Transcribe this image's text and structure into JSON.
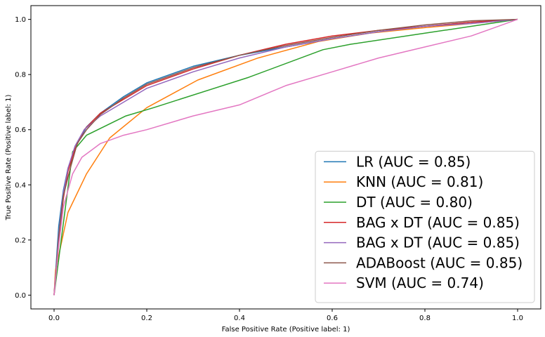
{
  "chart_data": {
    "type": "line",
    "xlabel": "False Positive Rate (Positive label: 1)",
    "ylabel": "True Positive Rate (Positive label: 1)",
    "xlim": [
      -0.05,
      1.05
    ],
    "ylim": [
      -0.05,
      1.05
    ],
    "xticks": [
      "0.0",
      "0.2",
      "0.4",
      "0.6",
      "0.8",
      "1.0"
    ],
    "yticks": [
      "0.0",
      "0.2",
      "0.4",
      "0.6",
      "0.8",
      "1.0"
    ],
    "grid": false,
    "legend_position": "lower-right",
    "series": [
      {
        "name": "LR (AUC = 0.85)",
        "color": "#1f77b4",
        "x": [
          0,
          0.01,
          0.02,
          0.03,
          0.05,
          0.07,
          0.1,
          0.15,
          0.2,
          0.3,
          0.4,
          0.5,
          0.6,
          0.7,
          0.8,
          0.9,
          1.0
        ],
        "y": [
          0,
          0.25,
          0.38,
          0.46,
          0.55,
          0.61,
          0.66,
          0.72,
          0.77,
          0.83,
          0.87,
          0.9,
          0.93,
          0.955,
          0.975,
          0.99,
          1.0
        ]
      },
      {
        "name": "KNN (AUC = 0.81)",
        "color": "#ff7f0e",
        "x": [
          0,
          0.003,
          0.03,
          0.07,
          0.12,
          0.2,
          0.31,
          0.44,
          0.57,
          0.68,
          0.8,
          0.9,
          1.0
        ],
        "y": [
          0,
          0.09,
          0.3,
          0.44,
          0.57,
          0.68,
          0.78,
          0.86,
          0.92,
          0.95,
          0.97,
          0.985,
          1.0
        ]
      },
      {
        "name": "DT (AUC = 0.80)",
        "color": "#2ca02c",
        "x": [
          0,
          0.04,
          0.07,
          0.155,
          0.215,
          0.42,
          0.58,
          0.64,
          0.8,
          1.0
        ],
        "y": [
          0,
          0.52,
          0.58,
          0.65,
          0.68,
          0.79,
          0.89,
          0.91,
          0.95,
          1.0
        ]
      },
      {
        "name": "BAG x DT (AUC = 0.85)",
        "color": "#d62728",
        "x": [
          0,
          0.01,
          0.02,
          0.03,
          0.045,
          0.065,
          0.1,
          0.15,
          0.2,
          0.3,
          0.4,
          0.5,
          0.6,
          0.7,
          0.8,
          0.9,
          1.0
        ],
        "y": [
          0,
          0.2,
          0.35,
          0.45,
          0.53,
          0.6,
          0.66,
          0.71,
          0.76,
          0.82,
          0.87,
          0.91,
          0.94,
          0.96,
          0.975,
          0.99,
          1.0
        ]
      },
      {
        "name": "BAG x DT (AUC = 0.85)",
        "color": "#9467bd",
        "x": [
          0,
          0.01,
          0.02,
          0.03,
          0.045,
          0.065,
          0.1,
          0.15,
          0.2,
          0.3,
          0.4,
          0.5,
          0.6,
          0.7,
          0.8,
          0.9,
          1.0
        ],
        "y": [
          0,
          0.22,
          0.37,
          0.46,
          0.54,
          0.6,
          0.65,
          0.7,
          0.75,
          0.81,
          0.86,
          0.9,
          0.93,
          0.955,
          0.975,
          0.985,
          1.0
        ]
      },
      {
        "name": "ADABoost (AUC = 0.85)",
        "color": "#8c564b",
        "x": [
          0,
          0.01,
          0.02,
          0.035,
          0.05,
          0.07,
          0.1,
          0.15,
          0.2,
          0.3,
          0.4,
          0.5,
          0.6,
          0.7,
          0.8,
          0.9,
          1.0
        ],
        "y": [
          0,
          0.21,
          0.36,
          0.46,
          0.55,
          0.6,
          0.655,
          0.715,
          0.765,
          0.825,
          0.87,
          0.905,
          0.935,
          0.96,
          0.98,
          0.995,
          1.0
        ]
      },
      {
        "name": "SVM (AUC = 0.74)",
        "color": "#e377c2",
        "x": [
          0,
          0.01,
          0.02,
          0.04,
          0.06,
          0.1,
          0.15,
          0.2,
          0.3,
          0.4,
          0.5,
          0.6,
          0.7,
          0.8,
          0.9,
          0.95,
          1.0
        ],
        "y": [
          0,
          0.18,
          0.32,
          0.44,
          0.5,
          0.55,
          0.58,
          0.6,
          0.65,
          0.69,
          0.76,
          0.81,
          0.86,
          0.9,
          0.94,
          0.97,
          1.0
        ]
      }
    ]
  }
}
